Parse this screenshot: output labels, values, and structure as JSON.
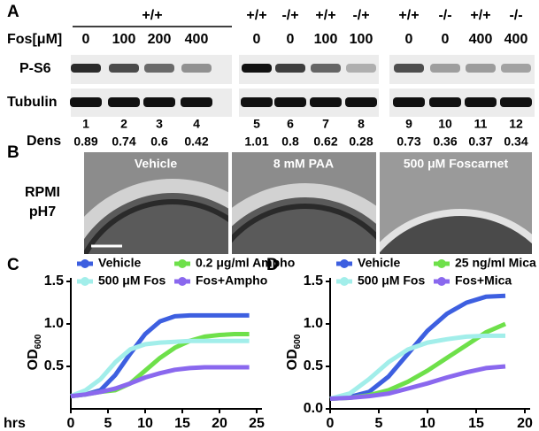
{
  "panel_a": {
    "label": "A",
    "genotype": [
      "+/+",
      "+/+",
      "-/+",
      "+/+",
      "-/+",
      "+/+",
      "-/-",
      "+/+",
      "-/-"
    ],
    "fos_label": "Fos[μM]",
    "fos": [
      0,
      100,
      200,
      400,
      0,
      0,
      100,
      100,
      0,
      0,
      400,
      400
    ],
    "blots": [
      "P-S6",
      "Tubulin"
    ],
    "lanes": [
      1,
      2,
      3,
      4,
      5,
      6,
      7,
      8,
      9,
      10,
      11,
      12
    ],
    "dens_label": "Dens",
    "dens": [
      0.89,
      0.74,
      0.6,
      0.42,
      1.01,
      0.8,
      0.62,
      0.28,
      0.73,
      0.36,
      0.37,
      0.34
    ]
  },
  "panel_b": {
    "label": "B",
    "condition": [
      "RPMI",
      "pH7"
    ],
    "images": [
      "Vehicle",
      "8 mM PAA",
      "500 μM Foscarnet"
    ]
  },
  "chart_data": [
    {
      "type": "line",
      "panel_label": "C",
      "x_label": "hrs",
      "y_label": "OD",
      "y_label_sub": "600",
      "x": [
        0,
        2,
        4,
        6,
        8,
        10,
        12,
        14,
        16,
        18,
        20,
        22,
        24
      ],
      "xlim": [
        0,
        25
      ],
      "xticks": [
        0,
        5,
        10,
        15,
        20,
        25
      ],
      "ylim": [
        0,
        1.5
      ],
      "yticks": [
        0.5,
        {
          "value": 1,
          "label": "1.0"
        },
        1.5
      ],
      "series": [
        {
          "name": "Vehicle",
          "color": "#3d5fe0",
          "values": [
            0.15,
            0.17,
            0.22,
            0.4,
            0.65,
            0.88,
            1.03,
            1.09,
            1.1,
            1.1,
            1.1,
            1.1,
            1.1
          ]
        },
        {
          "name": "0.2 μg/ml Ampho",
          "color": "#6ee04a",
          "values": [
            0.15,
            0.17,
            0.2,
            0.22,
            0.3,
            0.45,
            0.6,
            0.72,
            0.8,
            0.85,
            0.87,
            0.88,
            0.88
          ]
        },
        {
          "name": "500 μM Fos",
          "color": "#a2eeea",
          "values": [
            0.15,
            0.22,
            0.35,
            0.55,
            0.7,
            0.76,
            0.78,
            0.79,
            0.8,
            0.8,
            0.8,
            0.8,
            0.8
          ]
        },
        {
          "name": "Fos+Ampho",
          "color": "#8a68ee",
          "values": [
            0.15,
            0.17,
            0.2,
            0.24,
            0.3,
            0.37,
            0.42,
            0.46,
            0.48,
            0.49,
            0.49,
            0.49,
            0.49
          ]
        }
      ]
    },
    {
      "type": "line",
      "panel_label": "D",
      "y_label": "OD",
      "y_label_sub": "600",
      "x": [
        0,
        2,
        4,
        6,
        8,
        10,
        12,
        14,
        16,
        18
      ],
      "xlim": [
        0,
        20
      ],
      "xticks": [
        0,
        5,
        10,
        15,
        20
      ],
      "ylim": [
        0,
        1.5
      ],
      "yticks": [
        {
          "value": 0,
          "label": "0.0"
        },
        0.5,
        {
          "value": 1,
          "label": "1.0"
        },
        1.5
      ],
      "series": [
        {
          "name": "Vehicle",
          "color": "#3d5fe0",
          "values": [
            0.12,
            0.14,
            0.2,
            0.38,
            0.65,
            0.92,
            1.12,
            1.25,
            1.32,
            1.33
          ]
        },
        {
          "name": "25 ng/ml Mica",
          "color": "#6ee04a",
          "values": [
            0.12,
            0.13,
            0.16,
            0.22,
            0.32,
            0.45,
            0.6,
            0.75,
            0.9,
            1.0
          ]
        },
        {
          "name": "500 μM Fos",
          "color": "#a2eeea",
          "values": [
            0.12,
            0.18,
            0.35,
            0.55,
            0.7,
            0.78,
            0.82,
            0.85,
            0.86,
            0.86
          ]
        },
        {
          "name": "Fos+Mica",
          "color": "#8a68ee",
          "values": [
            0.12,
            0.13,
            0.15,
            0.18,
            0.24,
            0.3,
            0.37,
            0.43,
            0.48,
            0.5
          ]
        }
      ]
    }
  ]
}
